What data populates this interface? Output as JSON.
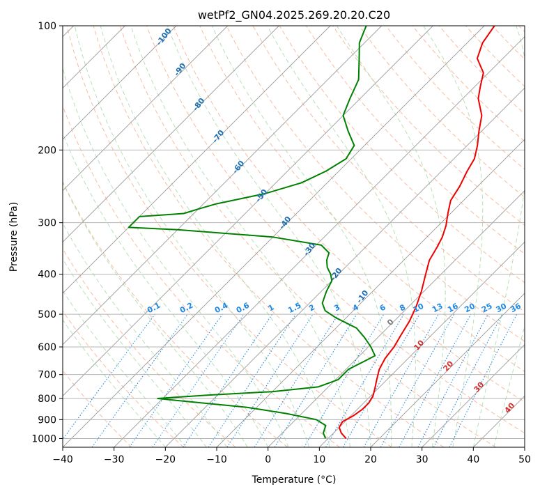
{
  "chart_data": {
    "type": "skew-t",
    "title": "wetPf2_GN04.2025.269.20.20.C20",
    "xlabel": "Temperature (°C)",
    "ylabel": "Pressure (hPa)",
    "xlim": [
      -40,
      50
    ],
    "ylim_hpa": [
      1050,
      100
    ],
    "x_ticks": [
      "−40",
      "−30",
      "−20",
      "−10",
      "0",
      "10",
      "20",
      "30",
      "40",
      "50"
    ],
    "x_tick_values": [
      -40,
      -30,
      -20,
      -10,
      0,
      10,
      20,
      30,
      40,
      50
    ],
    "y_ticks": [
      "100",
      "200",
      "300",
      "400",
      "500",
      "600",
      "700",
      "800",
      "900",
      "1000"
    ],
    "y_tick_values": [
      100,
      200,
      300,
      400,
      500,
      600,
      700,
      800,
      900,
      1000
    ],
    "grid": true,
    "colors": {
      "temperature": "#ee0000",
      "dewpoint": "#008000",
      "isotherm": "#9a9a9a",
      "dry_adiabat": "#f4a582",
      "moist_adiabat": "#a6d8a6",
      "mixing_ratio": "#1e88e5",
      "dry_adiabat_label": "#1f6fb4",
      "moist_label": "#d32f2f",
      "zero_label": "#7a7a7a"
    },
    "temperature_profile": [
      {
        "p": 1000,
        "t": 13.5
      },
      {
        "p": 970,
        "t": 11.5
      },
      {
        "p": 940,
        "t": 10.0
      },
      {
        "p": 910,
        "t": 9.5
      },
      {
        "p": 880,
        "t": 10.5
      },
      {
        "p": 850,
        "t": 11.0
      },
      {
        "p": 820,
        "t": 11.0
      },
      {
        "p": 790,
        "t": 10.5
      },
      {
        "p": 760,
        "t": 9.5
      },
      {
        "p": 720,
        "t": 8.0
      },
      {
        "p": 680,
        "t": 6.5
      },
      {
        "p": 640,
        "t": 5.5
      },
      {
        "p": 600,
        "t": 5.0
      },
      {
        "p": 560,
        "t": 4.0
      },
      {
        "p": 520,
        "t": 3.0
      },
      {
        "p": 480,
        "t": 1.5
      },
      {
        "p": 440,
        "t": -0.5
      },
      {
        "p": 400,
        "t": -3.0
      },
      {
        "p": 370,
        "t": -5.0
      },
      {
        "p": 345,
        "t": -6.0
      },
      {
        "p": 325,
        "t": -7.0
      },
      {
        "p": 305,
        "t": -8.5
      },
      {
        "p": 285,
        "t": -10.5
      },
      {
        "p": 265,
        "t": -12.5
      },
      {
        "p": 245,
        "t": -13.5
      },
      {
        "p": 225,
        "t": -15.0
      },
      {
        "p": 210,
        "t": -16.0
      },
      {
        "p": 195,
        "t": -18.0
      },
      {
        "p": 180,
        "t": -20.5
      },
      {
        "p": 165,
        "t": -23.0
      },
      {
        "p": 150,
        "t": -27.0
      },
      {
        "p": 140,
        "t": -29.0
      },
      {
        "p": 130,
        "t": -31.0
      },
      {
        "p": 120,
        "t": -35.0
      },
      {
        "p": 110,
        "t": -37.0
      },
      {
        "p": 100,
        "t": -38.0
      }
    ],
    "dewpoint_profile": [
      {
        "p": 1000,
        "t": 9.5
      },
      {
        "p": 970,
        "t": 8.0
      },
      {
        "p": 930,
        "t": 7.0
      },
      {
        "p": 900,
        "t": 4.0
      },
      {
        "p": 870,
        "t": -3.0
      },
      {
        "p": 840,
        "t": -12.0
      },
      {
        "p": 815,
        "t": -24.0
      },
      {
        "p": 800,
        "t": -31.0
      },
      {
        "p": 785,
        "t": -22.0
      },
      {
        "p": 770,
        "t": -10.0
      },
      {
        "p": 750,
        "t": -2.0
      },
      {
        "p": 720,
        "t": 0.5
      },
      {
        "p": 680,
        "t": 0.5
      },
      {
        "p": 650,
        "t": 2.0
      },
      {
        "p": 630,
        "t": 3.0
      },
      {
        "p": 600,
        "t": 0.5
      },
      {
        "p": 570,
        "t": -2.5
      },
      {
        "p": 540,
        "t": -6.0
      },
      {
        "p": 510,
        "t": -12.0
      },
      {
        "p": 490,
        "t": -15.5
      },
      {
        "p": 470,
        "t": -17.5
      },
      {
        "p": 440,
        "t": -19.0
      },
      {
        "p": 415,
        "t": -20.0
      },
      {
        "p": 400,
        "t": -21.5
      },
      {
        "p": 385,
        "t": -23.5
      },
      {
        "p": 370,
        "t": -25.0
      },
      {
        "p": 355,
        "t": -26.0
      },
      {
        "p": 340,
        "t": -29.0
      },
      {
        "p": 325,
        "t": -40.0
      },
      {
        "p": 312,
        "t": -60.0
      },
      {
        "p": 308,
        "t": -70.0
      },
      {
        "p": 290,
        "t": -70.0
      },
      {
        "p": 285,
        "t": -62.0
      },
      {
        "p": 278,
        "t": -60.0
      },
      {
        "p": 270,
        "t": -57.5
      },
      {
        "p": 255,
        "t": -50.0
      },
      {
        "p": 240,
        "t": -45.0
      },
      {
        "p": 225,
        "t": -42.5
      },
      {
        "p": 210,
        "t": -41.0
      },
      {
        "p": 195,
        "t": -42.0
      },
      {
        "p": 180,
        "t": -46.0
      },
      {
        "p": 165,
        "t": -50.0
      },
      {
        "p": 150,
        "t": -52.0
      },
      {
        "p": 135,
        "t": -54.0
      },
      {
        "p": 120,
        "t": -58.0
      },
      {
        "p": 110,
        "t": -61.0
      },
      {
        "p": 100,
        "t": -63.0
      }
    ],
    "dry_adiabat_labels": [
      "-100",
      "-90",
      "-80",
      "-70",
      "-60",
      "-50",
      "-40",
      "-30",
      "-20",
      "-10"
    ],
    "dry_adiabat_label_values": [
      -100,
      -90,
      -80,
      -70,
      -60,
      -50,
      -40,
      -30,
      -20,
      -10
    ],
    "mixing_ratio_labels": [
      "0.1",
      "0.2",
      "0.4",
      "0.6",
      "1",
      "1.5",
      "2",
      "3",
      "4",
      "6",
      "8",
      "10",
      "13",
      "16",
      "20",
      "25",
      "30",
      "36"
    ],
    "mixing_ratio_values": [
      0.1,
      0.2,
      0.4,
      0.6,
      1,
      1.5,
      2,
      3,
      4,
      6,
      8,
      10,
      13,
      16,
      20,
      25,
      30,
      36
    ],
    "moist_adiabat_labels": [
      "0",
      "10",
      "20",
      "30",
      "40"
    ],
    "moist_adiabat_label_values": [
      0,
      10,
      20,
      30,
      40
    ]
  }
}
